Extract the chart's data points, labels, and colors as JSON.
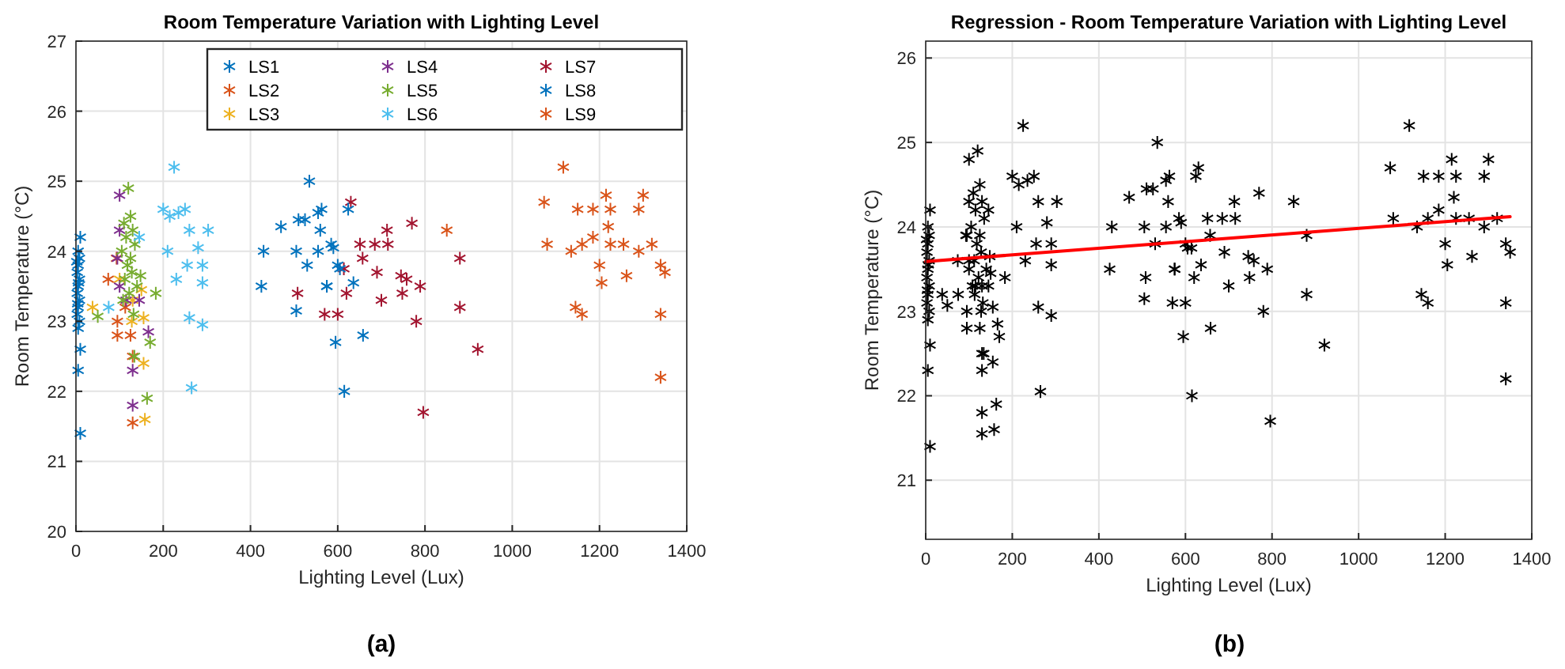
{
  "chart_data": [
    {
      "type": "scatter",
      "title": "Room Temperature Variation with Lighting Level",
      "xlabel": "Lighting Level (Lux)",
      "ylabel": "Room Temperature (°C)",
      "xlim": [
        0,
        1400
      ],
      "ylim": [
        20,
        27
      ],
      "xticks": [
        0,
        200,
        400,
        600,
        800,
        1000,
        1200,
        1400
      ],
      "yticks": [
        20,
        21,
        22,
        23,
        24,
        25,
        26,
        27
      ],
      "grid": true,
      "legend": "top right",
      "marker": "cross",
      "annotations": [
        "(a)"
      ],
      "series": [
        {
          "name": "LS1",
          "color": "#0072bd",
          "x": [
            10,
            5,
            8,
            5,
            3,
            8,
            5,
            3,
            8,
            5,
            3,
            8,
            5,
            10,
            5,
            10,
            2,
            6,
            4
          ],
          "values": [
            24.2,
            24,
            23.9,
            23.8,
            23.7,
            23.6,
            23.5,
            23.4,
            23.3,
            23.2,
            23.1,
            23,
            22.9,
            22.6,
            22.3,
            21.4,
            23.85,
            23.55,
            23.25
          ]
        },
        {
          "name": "LS2",
          "color": "#d95319",
          "x": [
            74,
            95,
            125,
            130,
            95,
            113,
            93,
            130
          ],
          "values": [
            23.6,
            22.8,
            22.8,
            21.55,
            23.0,
            23.2,
            23.9,
            22.5
          ]
        },
        {
          "name": "LS3",
          "color": "#edb120",
          "x": [
            38,
            128,
            155,
            155,
            158,
            150,
            130,
            100
          ],
          "values": [
            23.2,
            23.0,
            23.05,
            22.4,
            21.6,
            23.45,
            23.3,
            23.6
          ]
        },
        {
          "name": "LS4",
          "color": "#7e2f8e",
          "x": [
            100,
            100,
            95,
            100,
            145,
            166,
            130,
            130,
            115
          ],
          "values": [
            24.8,
            24.3,
            23.9,
            23.5,
            23.3,
            22.85,
            22.3,
            21.8,
            23.3
          ]
        },
        {
          "name": "LS5",
          "color": "#77ac30",
          "x": [
            120,
            125,
            110,
            130,
            115,
            135,
            105,
            125,
            118,
            128,
            112,
            140,
            122,
            108,
            132,
            183,
            170,
            163,
            134,
            50,
            148
          ],
          "values": [
            24.9,
            24.5,
            24.4,
            24.3,
            24.2,
            24.1,
            24.0,
            23.9,
            23.8,
            23.7,
            23.6,
            23.5,
            23.4,
            23.3,
            23.1,
            23.4,
            22.7,
            21.9,
            22.5,
            23.07,
            23.65
          ]
        },
        {
          "name": "LS6",
          "color": "#4dbeee",
          "x": [
            225,
            200,
            215,
            235,
            250,
            303,
            260,
            210,
            280,
            255,
            290,
            230,
            290,
            260,
            290,
            265,
            145,
            75
          ],
          "values": [
            25.2,
            24.6,
            24.5,
            24.55,
            24.6,
            24.3,
            24.3,
            24.0,
            24.05,
            23.8,
            23.8,
            23.6,
            23.55,
            23.05,
            22.95,
            22.05,
            24.2,
            23.2
          ]
        },
        {
          "name": "LS7",
          "color": "#a2142f",
          "x": [
            630,
            713,
            770,
            651,
            685,
            715,
            657,
            614,
            690,
            745,
            758,
            789,
            620,
            700,
            748,
            570,
            600,
            880,
            880,
            780,
            921,
            796,
            508
          ],
          "values": [
            24.7,
            24.3,
            24.4,
            24.1,
            24.1,
            24.1,
            23.9,
            23.75,
            23.7,
            23.65,
            23.6,
            23.5,
            23.4,
            23.3,
            23.4,
            23.1,
            23.1,
            23.9,
            23.2,
            23.0,
            22.6,
            21.7,
            23.4
          ]
        },
        {
          "name": "LS8",
          "color": "#0072bd",
          "x": [
            430,
            425,
            470,
            505,
            535,
            510,
            525,
            555,
            505,
            555,
            530,
            575,
            595,
            615,
            600,
            585,
            560,
            563,
            624,
            590,
            605,
            575,
            636,
            658
          ],
          "values": [
            24.0,
            23.5,
            24.35,
            23.15,
            25.0,
            24.45,
            24.45,
            24.55,
            24.0,
            24.0,
            23.8,
            23.5,
            22.7,
            22.0,
            23.8,
            24.1,
            24.3,
            24.6,
            24.6,
            24.05,
            23.75,
            23.5,
            23.55,
            22.8
          ]
        },
        {
          "name": "LS9",
          "color": "#d95319",
          "x": [
            850,
            1117,
            1073,
            1150,
            1185,
            1215,
            1225,
            1220,
            1300,
            1290,
            1080,
            1135,
            1160,
            1185,
            1225,
            1255,
            1290,
            1320,
            1200,
            1205,
            1262,
            1340,
            1145,
            1160,
            1340,
            1340,
            1350
          ],
          "values": [
            24.3,
            25.2,
            24.7,
            24.6,
            24.6,
            24.8,
            24.6,
            24.35,
            24.8,
            24.6,
            24.1,
            24.0,
            24.1,
            24.2,
            24.1,
            24.1,
            24.0,
            24.1,
            23.8,
            23.55,
            23.65,
            23.8,
            23.2,
            23.1,
            23.1,
            22.2,
            23.7
          ]
        }
      ]
    },
    {
      "type": "scatter",
      "title": "Regression - Room Temperature Variation with Lighting Level",
      "xlabel": "Lighting Level (Lux)",
      "ylabel": "Room Temperature (°C)",
      "xlim": [
        0,
        1400
      ],
      "ylim": [
        20.3,
        26.2
      ],
      "xticks": [
        0,
        200,
        400,
        600,
        800,
        1000,
        1200,
        1400
      ],
      "yticks": [
        21,
        22,
        23,
        24,
        25,
        26
      ],
      "grid": true,
      "marker": "cross",
      "annotations": [
        "(b)"
      ],
      "series": [
        {
          "color": "#000000",
          "x": [
            10,
            5,
            8,
            5,
            3,
            8,
            5,
            3,
            8,
            5,
            3,
            8,
            5,
            10,
            5,
            10,
            2,
            6,
            4
          ],
          "values": [
            24.2,
            24,
            23.9,
            23.8,
            23.7,
            23.6,
            23.5,
            23.4,
            23.3,
            23.2,
            23.1,
            23,
            22.9,
            22.6,
            22.3,
            21.4,
            23.85,
            23.55,
            23.25
          ]
        },
        {
          "color": "#000000",
          "x": [
            74,
            95,
            125,
            130,
            95,
            113,
            93,
            130
          ],
          "values": [
            23.6,
            22.8,
            22.8,
            21.55,
            23.0,
            23.2,
            23.9,
            22.5
          ]
        },
        {
          "color": "#000000",
          "x": [
            38,
            128,
            155,
            155,
            158,
            150,
            130,
            100
          ],
          "values": [
            23.2,
            23.0,
            23.05,
            22.4,
            21.6,
            23.45,
            23.3,
            23.6
          ]
        },
        {
          "color": "#000000",
          "x": [
            100,
            100,
            95,
            100,
            145,
            166,
            130,
            130,
            115
          ],
          "values": [
            24.8,
            24.3,
            23.9,
            23.5,
            23.3,
            22.85,
            22.3,
            21.8,
            23.3
          ]
        },
        {
          "color": "#000000",
          "x": [
            120,
            125,
            110,
            130,
            115,
            135,
            105,
            125,
            118,
            128,
            112,
            140,
            122,
            108,
            132,
            183,
            170,
            163,
            134,
            50,
            148
          ],
          "values": [
            24.9,
            24.5,
            24.4,
            24.3,
            24.2,
            24.1,
            24.0,
            23.9,
            23.8,
            23.7,
            23.6,
            23.5,
            23.4,
            23.3,
            23.1,
            23.4,
            22.7,
            21.9,
            22.5,
            23.07,
            23.65
          ]
        },
        {
          "color": "#000000",
          "x": [
            225,
            200,
            215,
            235,
            250,
            303,
            260,
            210,
            280,
            255,
            290,
            230,
            290,
            260,
            290,
            265,
            145,
            75
          ],
          "values": [
            25.2,
            24.6,
            24.5,
            24.55,
            24.6,
            24.3,
            24.3,
            24.0,
            24.05,
            23.8,
            23.8,
            23.6,
            23.55,
            23.05,
            22.95,
            22.05,
            24.2,
            23.2
          ]
        },
        {
          "color": "#000000",
          "x": [
            630,
            713,
            770,
            651,
            685,
            715,
            657,
            614,
            690,
            745,
            758,
            789,
            620,
            700,
            748,
            570,
            600,
            880,
            880,
            780,
            921,
            796,
            508
          ],
          "values": [
            24.7,
            24.3,
            24.4,
            24.1,
            24.1,
            24.1,
            23.9,
            23.75,
            23.7,
            23.65,
            23.6,
            23.5,
            23.4,
            23.3,
            23.4,
            23.1,
            23.1,
            23.9,
            23.2,
            23.0,
            22.6,
            21.7,
            23.4
          ]
        },
        {
          "color": "#000000",
          "x": [
            430,
            425,
            470,
            505,
            535,
            510,
            525,
            555,
            505,
            555,
            530,
            575,
            595,
            615,
            600,
            585,
            560,
            563,
            624,
            590,
            605,
            575,
            636,
            658
          ],
          "values": [
            24.0,
            23.5,
            24.35,
            23.15,
            25.0,
            24.45,
            24.45,
            24.55,
            24.0,
            24.0,
            23.8,
            23.5,
            22.7,
            22.0,
            23.8,
            24.1,
            24.3,
            24.6,
            24.6,
            24.05,
            23.75,
            23.5,
            23.55,
            22.8
          ]
        },
        {
          "color": "#000000",
          "x": [
            850,
            1117,
            1073,
            1150,
            1185,
            1215,
            1225,
            1220,
            1300,
            1290,
            1080,
            1135,
            1160,
            1185,
            1225,
            1255,
            1290,
            1320,
            1200,
            1205,
            1262,
            1340,
            1145,
            1160,
            1340,
            1340,
            1350
          ],
          "values": [
            24.3,
            25.2,
            24.7,
            24.6,
            24.6,
            24.8,
            24.6,
            24.35,
            24.8,
            24.6,
            24.1,
            24.0,
            24.1,
            24.2,
            24.1,
            24.1,
            24.0,
            24.1,
            23.8,
            23.55,
            23.65,
            23.8,
            23.2,
            23.1,
            23.1,
            22.2,
            23.7
          ]
        },
        {
          "type": "line",
          "marker": "none",
          "color": "#ff0000",
          "x": [
            0,
            1350
          ],
          "values": [
            23.59,
            24.12
          ]
        }
      ]
    }
  ]
}
